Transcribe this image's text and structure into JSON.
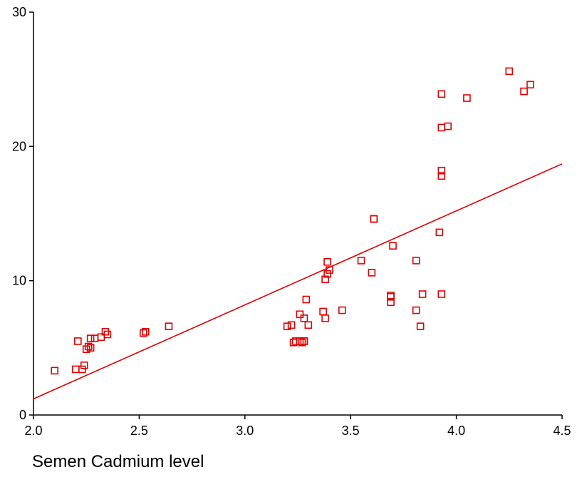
{
  "chart_data": {
    "type": "scatter",
    "title": "",
    "xlabel": "Semen Cadmium level",
    "ylabel": "",
    "xlim": [
      2.0,
      4.5
    ],
    "ylim": [
      0,
      30
    ],
    "x_ticks": [
      "2.0",
      "2.5",
      "3.0",
      "3.5",
      "4.0",
      "4.5"
    ],
    "y_ticks": [
      "0",
      "10",
      "20",
      "30"
    ],
    "grid": false,
    "legend": "none",
    "colors": {
      "points": "#e00000",
      "fit_line": "#e00000",
      "axes": "#000000"
    },
    "series": [
      {
        "points": [
          [
            2.1,
            3.3
          ],
          [
            2.2,
            3.4
          ],
          [
            2.21,
            5.5
          ],
          [
            2.23,
            3.4
          ],
          [
            2.24,
            3.7
          ],
          [
            2.25,
            4.9
          ],
          [
            2.26,
            5.1
          ],
          [
            2.27,
            5.0
          ],
          [
            2.27,
            5.7
          ],
          [
            2.29,
            5.7
          ],
          [
            2.32,
            5.8
          ],
          [
            2.34,
            6.2
          ],
          [
            2.35,
            6.0
          ],
          [
            2.52,
            6.1
          ],
          [
            2.53,
            6.2
          ],
          [
            2.64,
            6.6
          ],
          [
            3.2,
            6.6
          ],
          [
            3.22,
            6.7
          ],
          [
            3.23,
            5.4
          ],
          [
            3.24,
            5.5
          ],
          [
            3.26,
            7.5
          ],
          [
            3.26,
            5.5
          ],
          [
            3.27,
            5.4
          ],
          [
            3.28,
            5.5
          ],
          [
            3.28,
            5.5
          ],
          [
            3.28,
            7.2
          ],
          [
            3.29,
            8.6
          ],
          [
            3.3,
            6.7
          ],
          [
            3.37,
            7.7
          ],
          [
            3.38,
            7.2
          ],
          [
            3.38,
            10.1
          ],
          [
            3.39,
            11.4
          ],
          [
            3.39,
            10.5
          ],
          [
            3.4,
            10.8
          ],
          [
            3.46,
            7.8
          ],
          [
            3.55,
            11.5
          ],
          [
            3.6,
            10.6
          ],
          [
            3.61,
            14.6
          ],
          [
            3.61,
            14.6
          ],
          [
            3.69,
            8.4
          ],
          [
            3.69,
            8.9
          ],
          [
            3.69,
            8.8
          ],
          [
            3.7,
            12.6
          ],
          [
            3.81,
            11.5
          ],
          [
            3.81,
            7.8
          ],
          [
            3.83,
            6.6
          ],
          [
            3.84,
            9.0
          ],
          [
            3.92,
            13.6
          ],
          [
            3.93,
            9.0
          ],
          [
            3.93,
            17.8
          ],
          [
            3.93,
            18.2
          ],
          [
            3.93,
            21.4
          ],
          [
            3.93,
            23.9
          ],
          [
            3.96,
            21.5
          ],
          [
            4.05,
            23.6
          ],
          [
            4.25,
            25.6
          ],
          [
            4.32,
            24.1
          ],
          [
            4.35,
            24.6
          ]
        ]
      }
    ],
    "fit_line": {
      "x": [
        2.0,
        4.5
      ],
      "y": [
        1.2,
        18.7
      ]
    }
  },
  "axis_title": "Semen Cadmium level"
}
